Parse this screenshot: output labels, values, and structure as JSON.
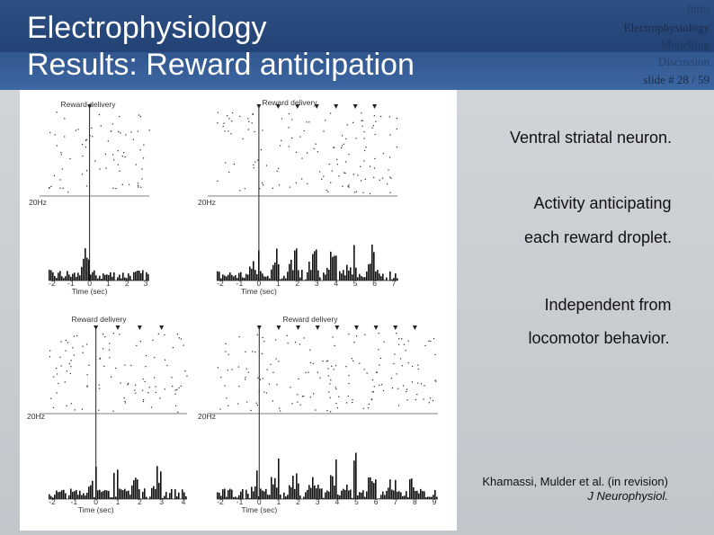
{
  "header": {
    "title_lines": [
      "Electrophysiology",
      "Results: Reward anticipation"
    ]
  },
  "navigation": {
    "items": [
      "Intro",
      "Electrophysiology",
      "Modelling",
      "Discussion"
    ],
    "slide_number": "slide # 28 / 59"
  },
  "figure": {
    "panels": [
      {
        "event_label": "Reward delivery",
        "scale_label": "20Hz",
        "x_ticks": [
          "-2",
          "-1",
          "0",
          "1",
          "2",
          "3"
        ],
        "x_label": "Time (sec)"
      },
      {
        "event_label": "Reward delivery",
        "scale_label": "20Hz",
        "x_ticks": [
          "-2",
          "-1",
          "0",
          "1",
          "2",
          "3",
          "4",
          "5",
          "6",
          "7"
        ],
        "x_label": "Time (sec)"
      },
      {
        "event_label": "Reward delivery",
        "scale_label": "20Hz",
        "x_ticks": [
          "-2",
          "-1",
          "0",
          "1",
          "2",
          "3",
          "4"
        ],
        "x_label": "Time (sec)"
      },
      {
        "event_label": "Reward delivery",
        "scale_label": "20Hz",
        "x_ticks": [
          "-2",
          "-1",
          "0",
          "1",
          "2",
          "3",
          "4",
          "5",
          "6",
          "7",
          "8",
          "9"
        ],
        "x_label": "Time (sec)"
      }
    ]
  },
  "body": {
    "paragraphs": [
      "Ventral striatal neuron.",
      "Activity anticipating",
      "each reward droplet.",
      "Independent from",
      "locomotor behavior."
    ]
  },
  "citation": {
    "authors": "Khamassi, Mulder et al. (in revision)",
    "journal": "J Neurophysiol."
  }
}
